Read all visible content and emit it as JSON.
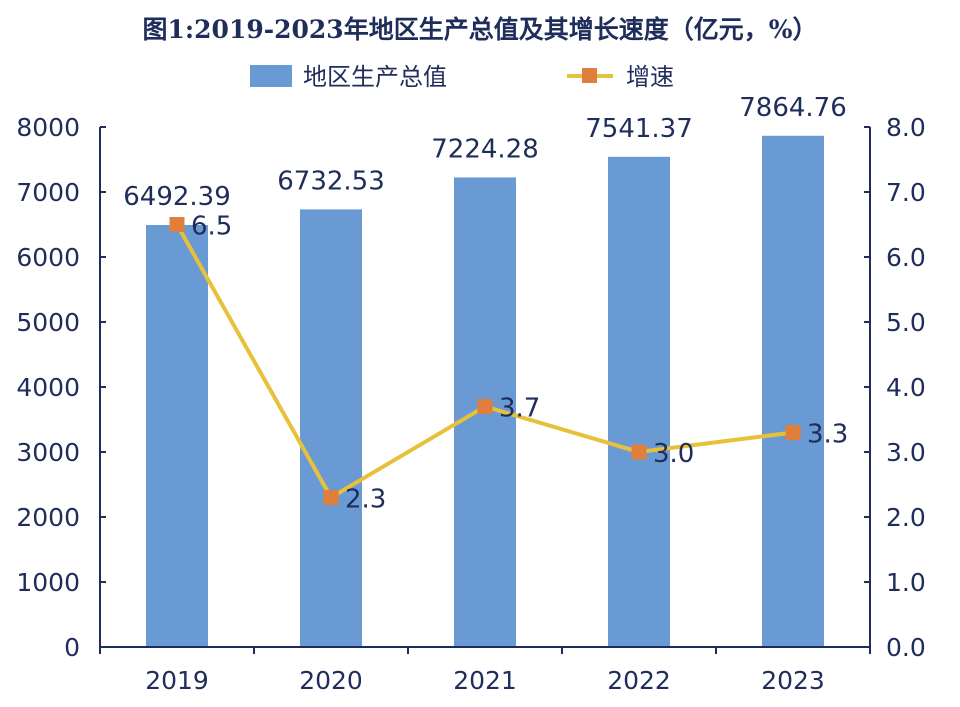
{
  "chart_data": {
    "type": "bar",
    "title": "图1:2019-2023年地区生产总值及其增长速度（亿元，%）",
    "categories": [
      "2019",
      "2020",
      "2021",
      "2022",
      "2023"
    ],
    "series": [
      {
        "name": "地区生产总值",
        "type": "bar",
        "axis": "left",
        "values": [
          6492.39,
          6732.53,
          7224.28,
          7541.37,
          7864.76
        ],
        "labels": [
          "6492.39",
          "6732.53",
          "7224.28",
          "7541.37",
          "7864.76"
        ]
      },
      {
        "name": "增速",
        "type": "line",
        "axis": "right",
        "values": [
          6.5,
          2.3,
          3.7,
          3.0,
          3.3
        ],
        "labels": [
          "6.5",
          "2.3",
          "3.7",
          "3.0",
          "3.3"
        ]
      }
    ],
    "y_left": {
      "min": 0,
      "max": 8000,
      "step": 1000,
      "ticks": [
        "0",
        "1000",
        "2000",
        "3000",
        "4000",
        "5000",
        "6000",
        "7000",
        "8000"
      ]
    },
    "y_right": {
      "min": 0,
      "max": 8,
      "step": 1,
      "ticks": [
        "0.0",
        "1.0",
        "2.0",
        "3.0",
        "4.0",
        "5.0",
        "6.0",
        "7.0",
        "8.0"
      ]
    },
    "grid": false,
    "legend_position": "top",
    "colors": {
      "bar": "#6a9ad3",
      "line": "#e8c13b",
      "marker": "#e07e3c",
      "axis": "#1f2d5a",
      "text": "#1f2d5a"
    }
  }
}
